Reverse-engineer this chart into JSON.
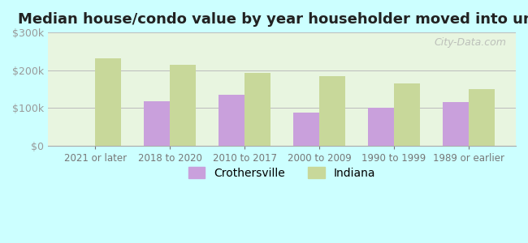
{
  "title": "Median house/condo value by year householder moved into unit",
  "categories": [
    "2021 or later",
    "2018 to 2020",
    "2010 to 2017",
    "2000 to 2009",
    "1990 to 1999",
    "1989 or earlier"
  ],
  "crothersville": [
    0,
    118000,
    135000,
    88000,
    102000,
    117000
  ],
  "indiana": [
    232000,
    215000,
    193000,
    185000,
    165000,
    150000
  ],
  "bar_color_crothersville": "#c9a0dc",
  "bar_color_indiana": "#c8d89a",
  "background_color": "#ccffff",
  "plot_bg_top": "#f0fff0",
  "plot_bg_bottom": "#e8f5e8",
  "ylim": [
    0,
    300000
  ],
  "yticks": [
    0,
    100000,
    200000,
    300000
  ],
  "ytick_labels": [
    "$0",
    "$100k",
    "$200k",
    "$300k"
  ],
  "watermark": "City-Data.com",
  "legend_labels": [
    "Crothersville",
    "Indiana"
  ]
}
